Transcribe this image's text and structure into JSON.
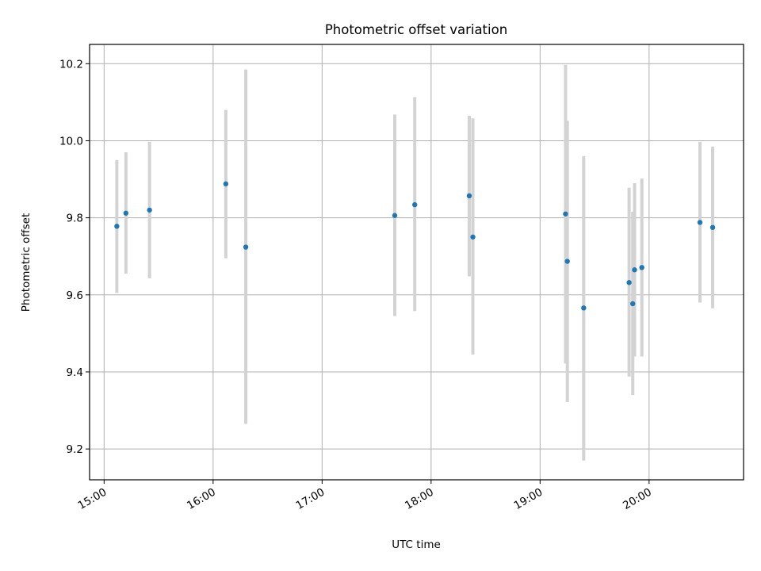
{
  "chart_data": {
    "type": "scatter",
    "title": "Photometric offset variation",
    "xlabel": "UTC time",
    "ylabel": "Photometric offset",
    "xlim": [
      "14:52",
      "20:52"
    ],
    "ylim": [
      9.12,
      10.25
    ],
    "x_ticks": [
      "15:00",
      "16:00",
      "17:00",
      "18:00",
      "19:00",
      "20:00"
    ],
    "y_ticks": [
      9.2,
      9.4,
      9.6,
      9.8,
      10.0,
      10.2
    ],
    "grid": true,
    "marker_color": "#1f77b4",
    "errorbar_color": "#d3d3d3",
    "points": [
      {
        "x": "15:07",
        "y": 9.778,
        "ylow": 9.605,
        "yhigh": 9.95
      },
      {
        "x": "15:12",
        "y": 9.812,
        "ylow": 9.655,
        "yhigh": 9.97
      },
      {
        "x": "15:25",
        "y": 9.82,
        "ylow": 9.643,
        "yhigh": 9.997
      },
      {
        "x": "16:07",
        "y": 9.888,
        "ylow": 9.695,
        "yhigh": 10.08
      },
      {
        "x": "16:18",
        "y": 9.724,
        "ylow": 9.265,
        "yhigh": 10.185
      },
      {
        "x": "17:40",
        "y": 9.806,
        "ylow": 9.545,
        "yhigh": 10.068
      },
      {
        "x": "17:51",
        "y": 9.834,
        "ylow": 9.558,
        "yhigh": 10.113
      },
      {
        "x": "18:21",
        "y": 9.857,
        "ylow": 9.648,
        "yhigh": 10.065
      },
      {
        "x": "18:23",
        "y": 9.75,
        "ylow": 9.445,
        "yhigh": 10.058
      },
      {
        "x": "19:14",
        "y": 9.81,
        "ylow": 9.422,
        "yhigh": 10.197
      },
      {
        "x": "19:15",
        "y": 9.687,
        "ylow": 9.322,
        "yhigh": 10.052
      },
      {
        "x": "19:24",
        "y": 9.566,
        "ylow": 9.17,
        "yhigh": 9.96
      },
      {
        "x": "19:49",
        "y": 9.632,
        "ylow": 9.388,
        "yhigh": 9.878
      },
      {
        "x": "19:51",
        "y": 9.577,
        "ylow": 9.34,
        "yhigh": 9.816
      },
      {
        "x": "19:52",
        "y": 9.665,
        "ylow": 9.44,
        "yhigh": 9.89
      },
      {
        "x": "19:56",
        "y": 9.671,
        "ylow": 9.44,
        "yhigh": 9.902
      },
      {
        "x": "20:28",
        "y": 9.788,
        "ylow": 9.58,
        "yhigh": 9.997
      },
      {
        "x": "20:35",
        "y": 9.775,
        "ylow": 9.565,
        "yhigh": 9.985
      }
    ]
  }
}
